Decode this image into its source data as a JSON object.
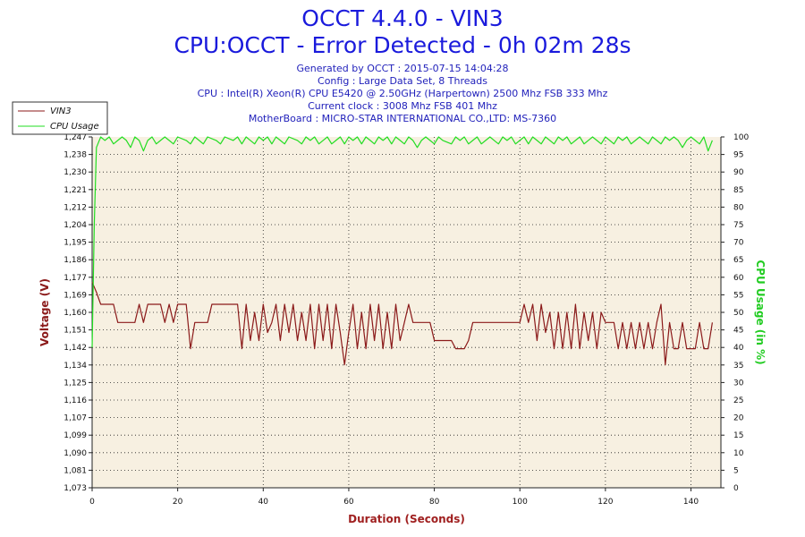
{
  "header": {
    "title": "OCCT 4.4.0 - VIN3",
    "subtitle": "CPU:OCCT - Error Detected - 0h 02m 28s",
    "info": [
      "Generated by OCCT : 2015-07-15 14:04:28",
      "Config : Large Data Set, 8 Threads",
      "CPU : Intel(R) Xeon(R) CPU E5420 @ 2.50GHz (Harpertown) 2500 Mhz FSB 333 Mhz",
      "Current clock : 3008 Mhz FSB 401 Mhz",
      "MotherBoard : MICRO-STAR INTERNATIONAL CO.,LTD: MS-7360"
    ]
  },
  "colors": {
    "vin3": "#8b1a1a",
    "cpu": "#22dd22",
    "plot_bg": "#f7f0e1",
    "left_axis_title": "#8b1a1a",
    "right_axis_title": "#22cc22",
    "x_axis_title": "#a02020"
  },
  "chart_data": {
    "type": "line",
    "xlabel": "Duration (Seconds)",
    "ylabel": "Voltage (V)",
    "y2label": "CPU Usage (in %)",
    "xlim": [
      0,
      147
    ],
    "ylim": [
      1.073,
      1.247
    ],
    "y2lim": [
      0,
      100
    ],
    "grid": true,
    "legend_position": "top-left",
    "x_ticks": [
      0,
      20,
      40,
      60,
      80,
      100,
      120,
      140
    ],
    "y_ticks": [
      "1,073",
      "1,081",
      "1,090",
      "1,099",
      "1,107",
      "1,116",
      "1,125",
      "1,134",
      "1,142",
      "1,151",
      "1,160",
      "1,169",
      "1,177",
      "1,186",
      "1,195",
      "1,204",
      "1,212",
      "1,221",
      "1,230",
      "1,238",
      "1,247"
    ],
    "y2_ticks": [
      0,
      5,
      10,
      15,
      20,
      25,
      30,
      35,
      40,
      45,
      50,
      55,
      60,
      65,
      70,
      75,
      80,
      85,
      90,
      95,
      100
    ],
    "series": [
      {
        "name": "VIN3",
        "axis": "left",
        "points": [
          [
            0,
            1.175
          ],
          [
            1,
            1.17
          ],
          [
            2,
            1.164
          ],
          [
            3,
            1.164
          ],
          [
            5,
            1.164
          ],
          [
            6,
            1.155
          ],
          [
            10,
            1.155
          ],
          [
            11,
            1.164
          ],
          [
            12,
            1.155
          ],
          [
            13,
            1.164
          ],
          [
            16,
            1.164
          ],
          [
            17,
            1.155
          ],
          [
            18,
            1.164
          ],
          [
            19,
            1.155
          ],
          [
            20,
            1.164
          ],
          [
            22,
            1.164
          ],
          [
            23,
            1.142
          ],
          [
            24,
            1.155
          ],
          [
            27,
            1.155
          ],
          [
            28,
            1.164
          ],
          [
            34,
            1.164
          ],
          [
            35,
            1.142
          ],
          [
            36,
            1.164
          ],
          [
            37,
            1.146
          ],
          [
            38,
            1.16
          ],
          [
            39,
            1.146
          ],
          [
            40,
            1.164
          ],
          [
            41,
            1.15
          ],
          [
            42,
            1.155
          ],
          [
            43,
            1.164
          ],
          [
            44,
            1.146
          ],
          [
            45,
            1.164
          ],
          [
            46,
            1.15
          ],
          [
            47,
            1.164
          ],
          [
            48,
            1.146
          ],
          [
            49,
            1.16
          ],
          [
            50,
            1.146
          ],
          [
            51,
            1.164
          ],
          [
            52,
            1.142
          ],
          [
            53,
            1.164
          ],
          [
            54,
            1.146
          ],
          [
            55,
            1.164
          ],
          [
            56,
            1.142
          ],
          [
            57,
            1.164
          ],
          [
            58,
            1.15
          ],
          [
            59,
            1.134
          ],
          [
            60,
            1.15
          ],
          [
            61,
            1.164
          ],
          [
            62,
            1.142
          ],
          [
            63,
            1.16
          ],
          [
            64,
            1.142
          ],
          [
            65,
            1.164
          ],
          [
            66,
            1.146
          ],
          [
            67,
            1.164
          ],
          [
            68,
            1.142
          ],
          [
            69,
            1.16
          ],
          [
            70,
            1.142
          ],
          [
            71,
            1.164
          ],
          [
            72,
            1.146
          ],
          [
            73,
            1.155
          ],
          [
            74,
            1.164
          ],
          [
            75,
            1.155
          ],
          [
            79,
            1.155
          ],
          [
            80,
            1.146
          ],
          [
            84,
            1.146
          ],
          [
            85,
            1.142
          ],
          [
            87,
            1.142
          ],
          [
            88,
            1.146
          ],
          [
            89,
            1.155
          ],
          [
            100,
            1.155
          ],
          [
            101,
            1.164
          ],
          [
            102,
            1.155
          ],
          [
            103,
            1.164
          ],
          [
            104,
            1.146
          ],
          [
            105,
            1.164
          ],
          [
            106,
            1.15
          ],
          [
            107,
            1.16
          ],
          [
            108,
            1.142
          ],
          [
            109,
            1.16
          ],
          [
            110,
            1.142
          ],
          [
            111,
            1.16
          ],
          [
            112,
            1.142
          ],
          [
            113,
            1.164
          ],
          [
            114,
            1.142
          ],
          [
            115,
            1.16
          ],
          [
            116,
            1.146
          ],
          [
            117,
            1.16
          ],
          [
            118,
            1.142
          ],
          [
            119,
            1.16
          ],
          [
            120,
            1.155
          ],
          [
            122,
            1.155
          ],
          [
            123,
            1.142
          ],
          [
            124,
            1.155
          ],
          [
            125,
            1.142
          ],
          [
            126,
            1.155
          ],
          [
            127,
            1.142
          ],
          [
            128,
            1.155
          ],
          [
            129,
            1.142
          ],
          [
            130,
            1.155
          ],
          [
            131,
            1.142
          ],
          [
            132,
            1.155
          ],
          [
            133,
            1.164
          ],
          [
            134,
            1.134
          ],
          [
            135,
            1.155
          ],
          [
            136,
            1.142
          ],
          [
            137,
            1.142
          ],
          [
            138,
            1.155
          ],
          [
            139,
            1.142
          ],
          [
            141,
            1.142
          ],
          [
            142,
            1.155
          ],
          [
            143,
            1.142
          ],
          [
            144,
            1.142
          ],
          [
            145,
            1.155
          ]
        ]
      },
      {
        "name": "CPU Usage",
        "axis": "right",
        "points": [
          [
            0,
            40
          ],
          [
            0.5,
            75
          ],
          [
            1,
            97
          ],
          [
            2,
            100
          ],
          [
            3,
            99
          ],
          [
            4,
            100
          ],
          [
            5,
            98
          ],
          [
            6,
            99
          ],
          [
            7,
            100
          ],
          [
            8,
            99
          ],
          [
            9,
            97
          ],
          [
            10,
            100
          ],
          [
            11,
            99
          ],
          [
            12,
            96
          ],
          [
            13,
            99
          ],
          [
            14,
            100
          ],
          [
            15,
            98
          ],
          [
            16,
            99
          ],
          [
            17,
            100
          ],
          [
            18,
            99
          ],
          [
            19,
            98
          ],
          [
            20,
            100
          ],
          [
            22,
            99
          ],
          [
            23,
            98
          ],
          [
            24,
            100
          ],
          [
            25,
            99
          ],
          [
            26,
            98
          ],
          [
            27,
            100
          ],
          [
            29,
            99
          ],
          [
            30,
            98
          ],
          [
            31,
            100
          ],
          [
            33,
            99
          ],
          [
            34,
            100
          ],
          [
            35,
            98
          ],
          [
            36,
            100
          ],
          [
            37,
            99
          ],
          [
            38,
            98
          ],
          [
            39,
            100
          ],
          [
            40,
            99
          ],
          [
            41,
            100
          ],
          [
            42,
            98
          ],
          [
            43,
            100
          ],
          [
            44,
            99
          ],
          [
            45,
            98
          ],
          [
            46,
            100
          ],
          [
            48,
            99
          ],
          [
            49,
            98
          ],
          [
            50,
            100
          ],
          [
            51,
            99
          ],
          [
            52,
            100
          ],
          [
            53,
            98
          ],
          [
            54,
            99
          ],
          [
            55,
            100
          ],
          [
            56,
            98
          ],
          [
            57,
            99
          ],
          [
            58,
            100
          ],
          [
            59,
            98
          ],
          [
            60,
            100
          ],
          [
            61,
            99
          ],
          [
            62,
            100
          ],
          [
            63,
            98
          ],
          [
            64,
            100
          ],
          [
            65,
            99
          ],
          [
            66,
            98
          ],
          [
            67,
            100
          ],
          [
            68,
            99
          ],
          [
            69,
            100
          ],
          [
            70,
            98
          ],
          [
            71,
            100
          ],
          [
            72,
            99
          ],
          [
            73,
            98
          ],
          [
            74,
            100
          ],
          [
            75,
            99
          ],
          [
            76,
            97
          ],
          [
            77,
            99
          ],
          [
            78,
            100
          ],
          [
            79,
            99
          ],
          [
            80,
            98
          ],
          [
            81,
            100
          ],
          [
            82,
            99
          ],
          [
            84,
            98
          ],
          [
            85,
            100
          ],
          [
            86,
            99
          ],
          [
            87,
            100
          ],
          [
            88,
            98
          ],
          [
            89,
            99
          ],
          [
            90,
            100
          ],
          [
            91,
            98
          ],
          [
            92,
            99
          ],
          [
            93,
            100
          ],
          [
            94,
            99
          ],
          [
            95,
            98
          ],
          [
            96,
            100
          ],
          [
            97,
            99
          ],
          [
            98,
            100
          ],
          [
            99,
            98
          ],
          [
            100,
            99
          ],
          [
            101,
            100
          ],
          [
            102,
            98
          ],
          [
            103,
            100
          ],
          [
            104,
            99
          ],
          [
            105,
            98
          ],
          [
            106,
            100
          ],
          [
            107,
            99
          ],
          [
            108,
            98
          ],
          [
            109,
            100
          ],
          [
            110,
            99
          ],
          [
            111,
            100
          ],
          [
            112,
            98
          ],
          [
            113,
            99
          ],
          [
            114,
            100
          ],
          [
            115,
            98
          ],
          [
            116,
            99
          ],
          [
            117,
            100
          ],
          [
            118,
            99
          ],
          [
            119,
            98
          ],
          [
            120,
            100
          ],
          [
            121,
            99
          ],
          [
            122,
            98
          ],
          [
            123,
            100
          ],
          [
            124,
            99
          ],
          [
            125,
            100
          ],
          [
            126,
            98
          ],
          [
            127,
            99
          ],
          [
            128,
            100
          ],
          [
            129,
            99
          ],
          [
            130,
            98
          ],
          [
            131,
            100
          ],
          [
            132,
            99
          ],
          [
            133,
            98
          ],
          [
            134,
            100
          ],
          [
            135,
            99
          ],
          [
            136,
            100
          ],
          [
            137,
            99
          ],
          [
            138,
            97
          ],
          [
            139,
            99
          ],
          [
            140,
            100
          ],
          [
            141,
            99
          ],
          [
            142,
            98
          ],
          [
            143,
            100
          ],
          [
            144,
            96
          ],
          [
            145,
            99
          ]
        ]
      }
    ]
  }
}
